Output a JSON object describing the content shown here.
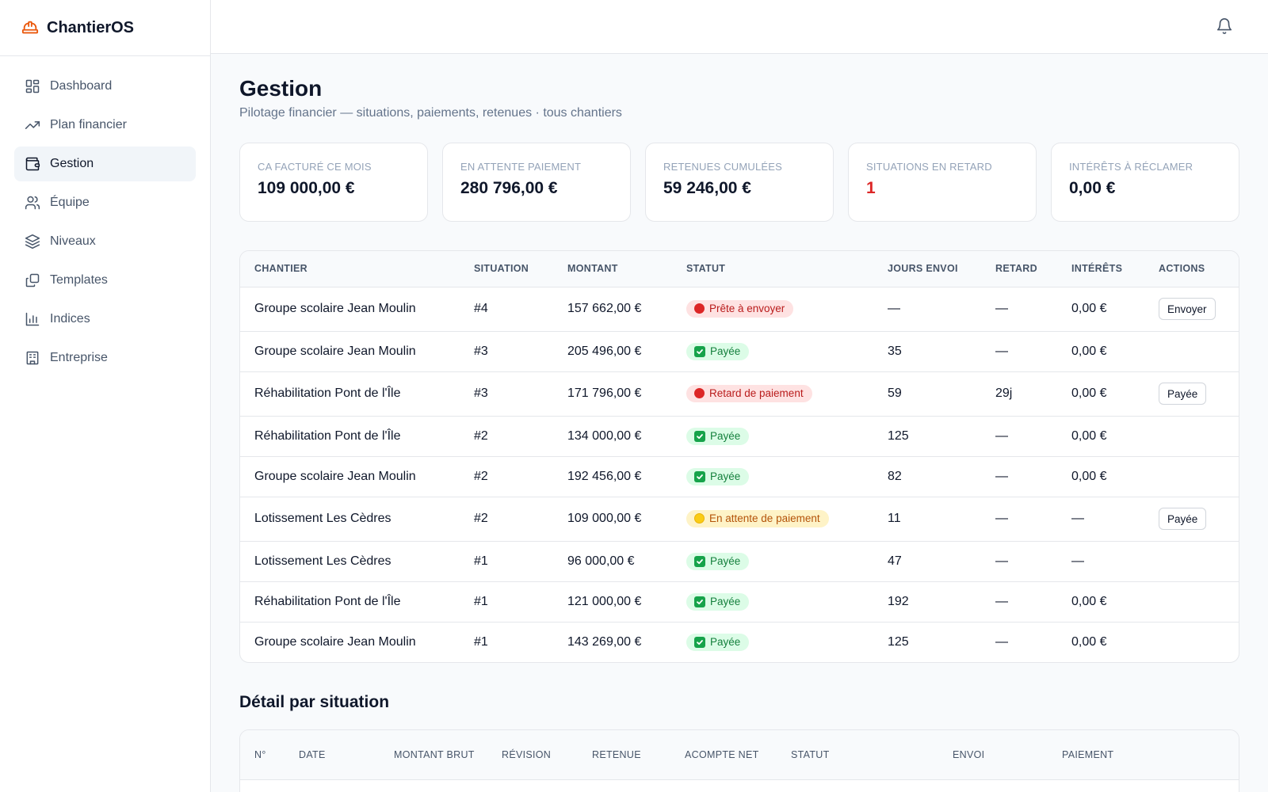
{
  "brand": {
    "name": "ChantierOS",
    "logo_icon": "hard-hat-icon",
    "accent": "#ea580c"
  },
  "sidebar": {
    "items": [
      {
        "label": "Dashboard",
        "icon": "dashboard-icon",
        "active": false
      },
      {
        "label": "Plan financier",
        "icon": "trending-up-icon",
        "active": false
      },
      {
        "label": "Gestion",
        "icon": "wallet-icon",
        "active": true
      },
      {
        "label": "Équipe",
        "icon": "users-icon",
        "active": false
      },
      {
        "label": "Niveaux",
        "icon": "layers-icon",
        "active": false
      },
      {
        "label": "Templates",
        "icon": "copy-icon",
        "active": false
      },
      {
        "label": "Indices",
        "icon": "bar-chart-icon",
        "active": false
      },
      {
        "label": "Entreprise",
        "icon": "building-icon",
        "active": false
      }
    ]
  },
  "header": {
    "title": "Gestion",
    "subtitle": "Pilotage financier — situations, paiements, retenues · tous chantiers"
  },
  "kpis": [
    {
      "label": "CA facturé ce mois",
      "value": "109 000,00 €"
    },
    {
      "label": "En attente paiement",
      "value": "280 796,00 €"
    },
    {
      "label": "Retenues cumulées",
      "value": "59 246,00 €"
    },
    {
      "label": "Situations en retard",
      "value": "1"
    },
    {
      "label": "Intérêts à réclamer",
      "value": "0,00 €"
    }
  ],
  "table": {
    "headers": [
      "Chantier",
      "Situation",
      "Montant",
      "Statut",
      "Jours envoi",
      "Retard",
      "Intérêts",
      "Actions"
    ],
    "rows": [
      {
        "chantier": "Groupe scolaire Jean Moulin",
        "situation": "#4",
        "montant": "157 662,00 €",
        "statut": "Prête à envoyer",
        "jours": "—",
        "retard": "—",
        "interets": "0,00 €",
        "action": "Envoyer"
      },
      {
        "chantier": "Groupe scolaire Jean Moulin",
        "situation": "#3",
        "montant": "205 496,00 €",
        "statut": "Payée",
        "jours": "35",
        "retard": "—",
        "interets": "0,00 €",
        "action": ""
      },
      {
        "chantier": "Réhabilitation Pont de l'Île",
        "situation": "#3",
        "montant": "171 796,00 €",
        "statut": "Retard de paiement",
        "jours": "59",
        "retard": "29j",
        "interets": "0,00 €",
        "action": "Payée"
      },
      {
        "chantier": "Réhabilitation Pont de l'Île",
        "situation": "#2",
        "montant": "134 000,00 €",
        "statut": "Payée",
        "jours": "125",
        "retard": "—",
        "interets": "0,00 €",
        "action": ""
      },
      {
        "chantier": "Groupe scolaire Jean Moulin",
        "situation": "#2",
        "montant": "192 456,00 €",
        "statut": "Payée",
        "jours": "82",
        "retard": "—",
        "interets": "0,00 €",
        "action": ""
      },
      {
        "chantier": "Lotissement Les Cèdres",
        "situation": "#2",
        "montant": "109 000,00 €",
        "statut": "En attente de paiement",
        "jours": "11",
        "retard": "—",
        "interets": "—",
        "action": "Payée"
      },
      {
        "chantier": "Lotissement Les Cèdres",
        "situation": "#1",
        "montant": "96 000,00 €",
        "statut": "Payée",
        "jours": "47",
        "retard": "—",
        "interets": "—",
        "action": ""
      },
      {
        "chantier": "Réhabilitation Pont de l'Île",
        "situation": "#1",
        "montant": "121 000,00 €",
        "statut": "Payée",
        "jours": "192",
        "retard": "—",
        "interets": "0,00 €",
        "action": ""
      },
      {
        "chantier": "Groupe scolaire Jean Moulin",
        "situation": "#1",
        "montant": "143 269,00 €",
        "statut": "Payée",
        "jours": "125",
        "retard": "—",
        "interets": "0,00 €",
        "action": ""
      }
    ]
  },
  "detail": {
    "title": "Détail par situation",
    "headers": [
      "N°",
      "Date",
      "Montant brut",
      "Révision",
      "Retenue",
      "Acompte net",
      "Statut",
      "Envoi",
      "Paiement"
    ]
  }
}
